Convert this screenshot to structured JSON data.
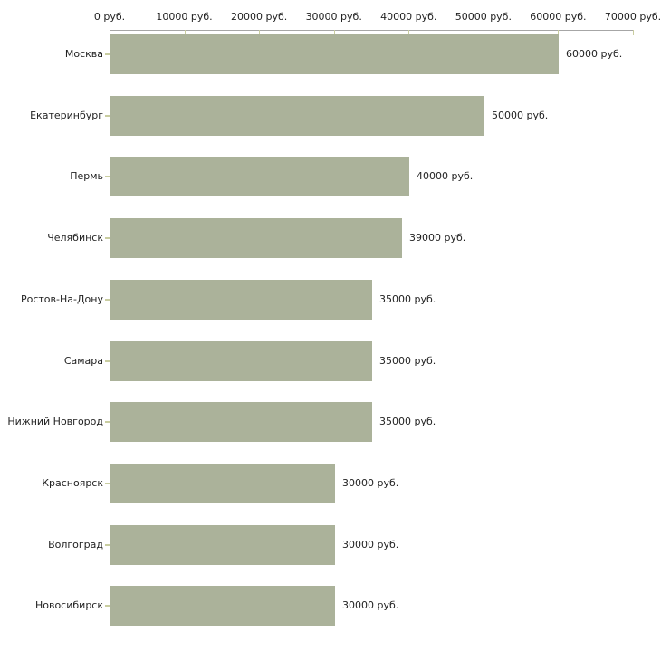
{
  "chart_data": {
    "type": "bar",
    "orientation": "horizontal",
    "title": "",
    "xlabel": "",
    "ylabel": "",
    "categories": [
      "Москва",
      "Екатеринбург",
      "Пермь",
      "Челябинск",
      "Ростов-На-Дону",
      "Самара",
      "Нижний Новгород",
      "Красноярск",
      "Волгоград",
      "Новосибирск"
    ],
    "values": [
      60000,
      50000,
      40000,
      39000,
      35000,
      35000,
      35000,
      30000,
      30000,
      30000
    ],
    "value_labels": [
      "60000 руб.",
      "50000 руб.",
      "40000 руб.",
      "39000 руб.",
      "35000 руб.",
      "35000 руб.",
      "35000 руб.",
      "30000 руб.",
      "30000 руб.",
      "30000 руб."
    ],
    "xlim": [
      0,
      70000
    ],
    "x_ticks": [
      0,
      10000,
      20000,
      30000,
      40000,
      50000,
      60000,
      70000
    ],
    "x_tick_labels": [
      "0 руб.",
      "10000 руб.",
      "20000 руб.",
      "30000 руб.",
      "40000 руб.",
      "50000 руб.",
      "60000 руб.",
      "70000 руб."
    ],
    "grid": false,
    "legend": false,
    "axis_position": "top",
    "colors": {
      "bar": "#abb29a",
      "axis": "#a6a6a6",
      "tick": "#c9cda0",
      "text": "#222222",
      "background": "#ffffff"
    }
  }
}
